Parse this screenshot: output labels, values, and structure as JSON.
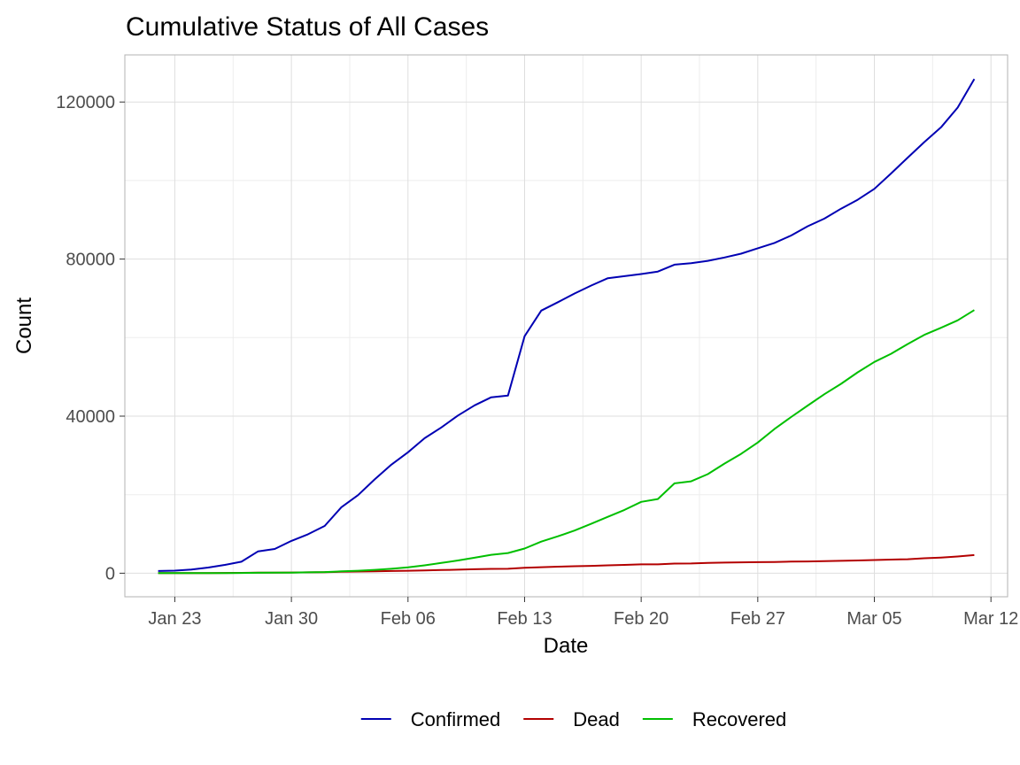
{
  "chart_data": {
    "type": "line",
    "title": "Cumulative Status of All Cases",
    "xlabel": "Date",
    "ylabel": "Count",
    "x_ticks": [
      "Jan 23",
      "Jan 30",
      "Feb 06",
      "Feb 13",
      "Feb 20",
      "Feb 27",
      "Mar 05",
      "Mar 12"
    ],
    "y_ticks": [
      0,
      40000,
      80000,
      120000
    ],
    "ylim": [
      -6000,
      132000
    ],
    "xlim": [
      "2020-01-20",
      "2020-03-13"
    ],
    "grid": true,
    "legend_position": "bottom",
    "x": [
      "2020-01-22",
      "2020-01-23",
      "2020-01-24",
      "2020-01-25",
      "2020-01-26",
      "2020-01-27",
      "2020-01-28",
      "2020-01-29",
      "2020-01-30",
      "2020-01-31",
      "2020-02-01",
      "2020-02-02",
      "2020-02-03",
      "2020-02-04",
      "2020-02-05",
      "2020-02-06",
      "2020-02-07",
      "2020-02-08",
      "2020-02-09",
      "2020-02-10",
      "2020-02-11",
      "2020-02-12",
      "2020-02-13",
      "2020-02-14",
      "2020-02-15",
      "2020-02-16",
      "2020-02-17",
      "2020-02-18",
      "2020-02-19",
      "2020-02-20",
      "2020-02-21",
      "2020-02-22",
      "2020-02-23",
      "2020-02-24",
      "2020-02-25",
      "2020-02-26",
      "2020-02-27",
      "2020-02-28",
      "2020-02-29",
      "2020-03-01",
      "2020-03-02",
      "2020-03-03",
      "2020-03-04",
      "2020-03-05",
      "2020-03-06",
      "2020-03-07",
      "2020-03-08",
      "2020-03-09",
      "2020-03-10",
      "2020-03-11"
    ],
    "series": [
      {
        "name": "Confirmed",
        "color": "#0000b3",
        "values": [
          555,
          654,
          941,
          1434,
          2118,
          2927,
          5578,
          6166,
          8234,
          9927,
          12038,
          16787,
          19881,
          23892,
          27635,
          30794,
          34391,
          37120,
          40150,
          42762,
          44802,
          45221,
          60368,
          66885,
          69030,
          71224,
          73258,
          75136,
          75639,
          76197,
          76819,
          78572,
          78958,
          79561,
          80406,
          81388,
          82746,
          84112,
          86011,
          88369,
          90306,
          92840,
          95120,
          97882,
          101784,
          105821,
          109795,
          113561,
          118592,
          125865
        ]
      },
      {
        "name": "Dead",
        "color": "#b30000",
        "values": [
          17,
          18,
          26,
          42,
          56,
          82,
          131,
          133,
          171,
          213,
          259,
          362,
          426,
          492,
          564,
          634,
          719,
          806,
          906,
          1013,
          1113,
          1118,
          1371,
          1523,
          1666,
          1770,
          1868,
          2007,
          2122,
          2247,
          2251,
          2458,
          2469,
          2629,
          2708,
          2770,
          2814,
          2872,
          2941,
          2996,
          3085,
          3160,
          3254,
          3348,
          3460,
          3558,
          3803,
          3996,
          4262,
          4615
        ]
      },
      {
        "name": "Recovered",
        "color": "#00bf00",
        "values": [
          28,
          30,
          36,
          39,
          52,
          61,
          107,
          126,
          143,
          222,
          284,
          472,
          623,
          852,
          1124,
          1487,
          2011,
          2616,
          3244,
          3946,
          4683,
          5150,
          6295,
          8058,
          9395,
          10865,
          12583,
          14352,
          16121,
          18177,
          18890,
          22886,
          23394,
          25227,
          27905,
          30384,
          33277,
          36711,
          39782,
          42716,
          45602,
          48228,
          51170,
          53796,
          55865,
          58358,
          60694,
          62494,
          64404,
          67003
        ]
      }
    ]
  }
}
